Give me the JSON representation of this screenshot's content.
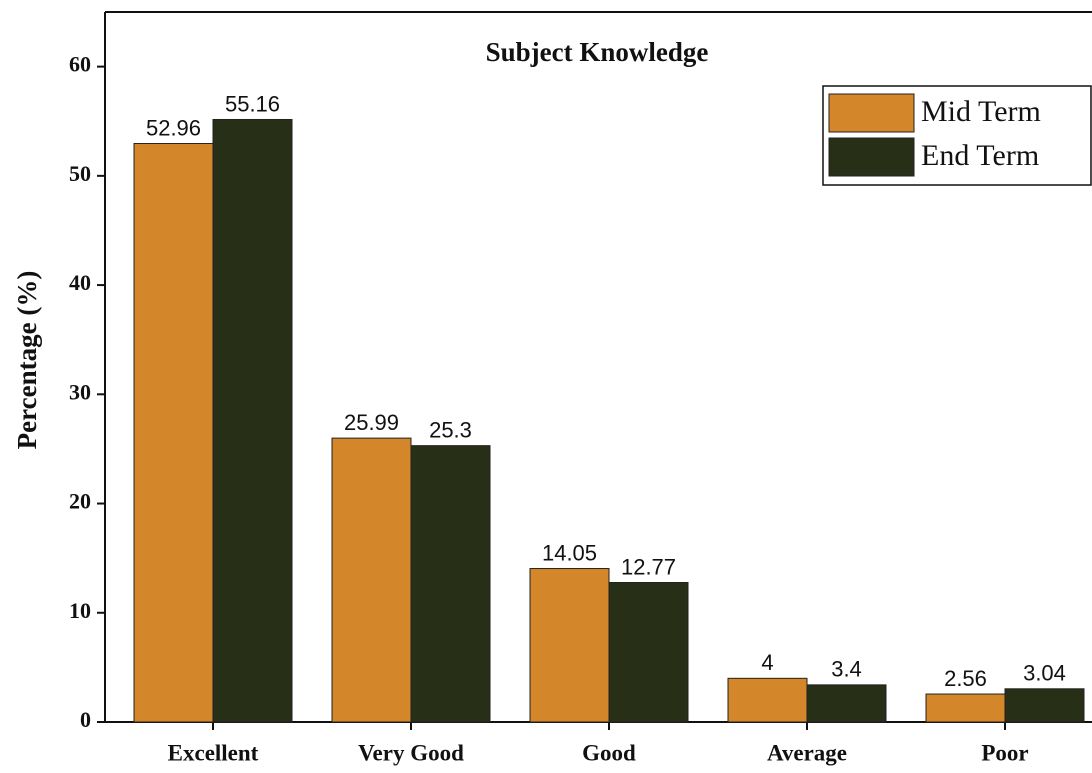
{
  "chart_data": {
    "type": "bar",
    "title": "Subject Knowledge",
    "y_label": "Percentage (%)",
    "categories": [
      "Excellent",
      "Very Good",
      "Good",
      "Average",
      "Poor"
    ],
    "series": [
      {
        "name": "Mid Term",
        "color": "#d4862a",
        "values": [
          52.96,
          25.99,
          14.05,
          4,
          2.56
        ]
      },
      {
        "name": "End Term",
        "color": "#272f17",
        "values": [
          55.16,
          25.3,
          12.77,
          3.4,
          3.04
        ]
      }
    ],
    "ylim": [
      0,
      65
    ],
    "yticks": [
      0,
      10,
      20,
      30,
      40,
      50,
      60
    ],
    "legend": "upper right"
  }
}
